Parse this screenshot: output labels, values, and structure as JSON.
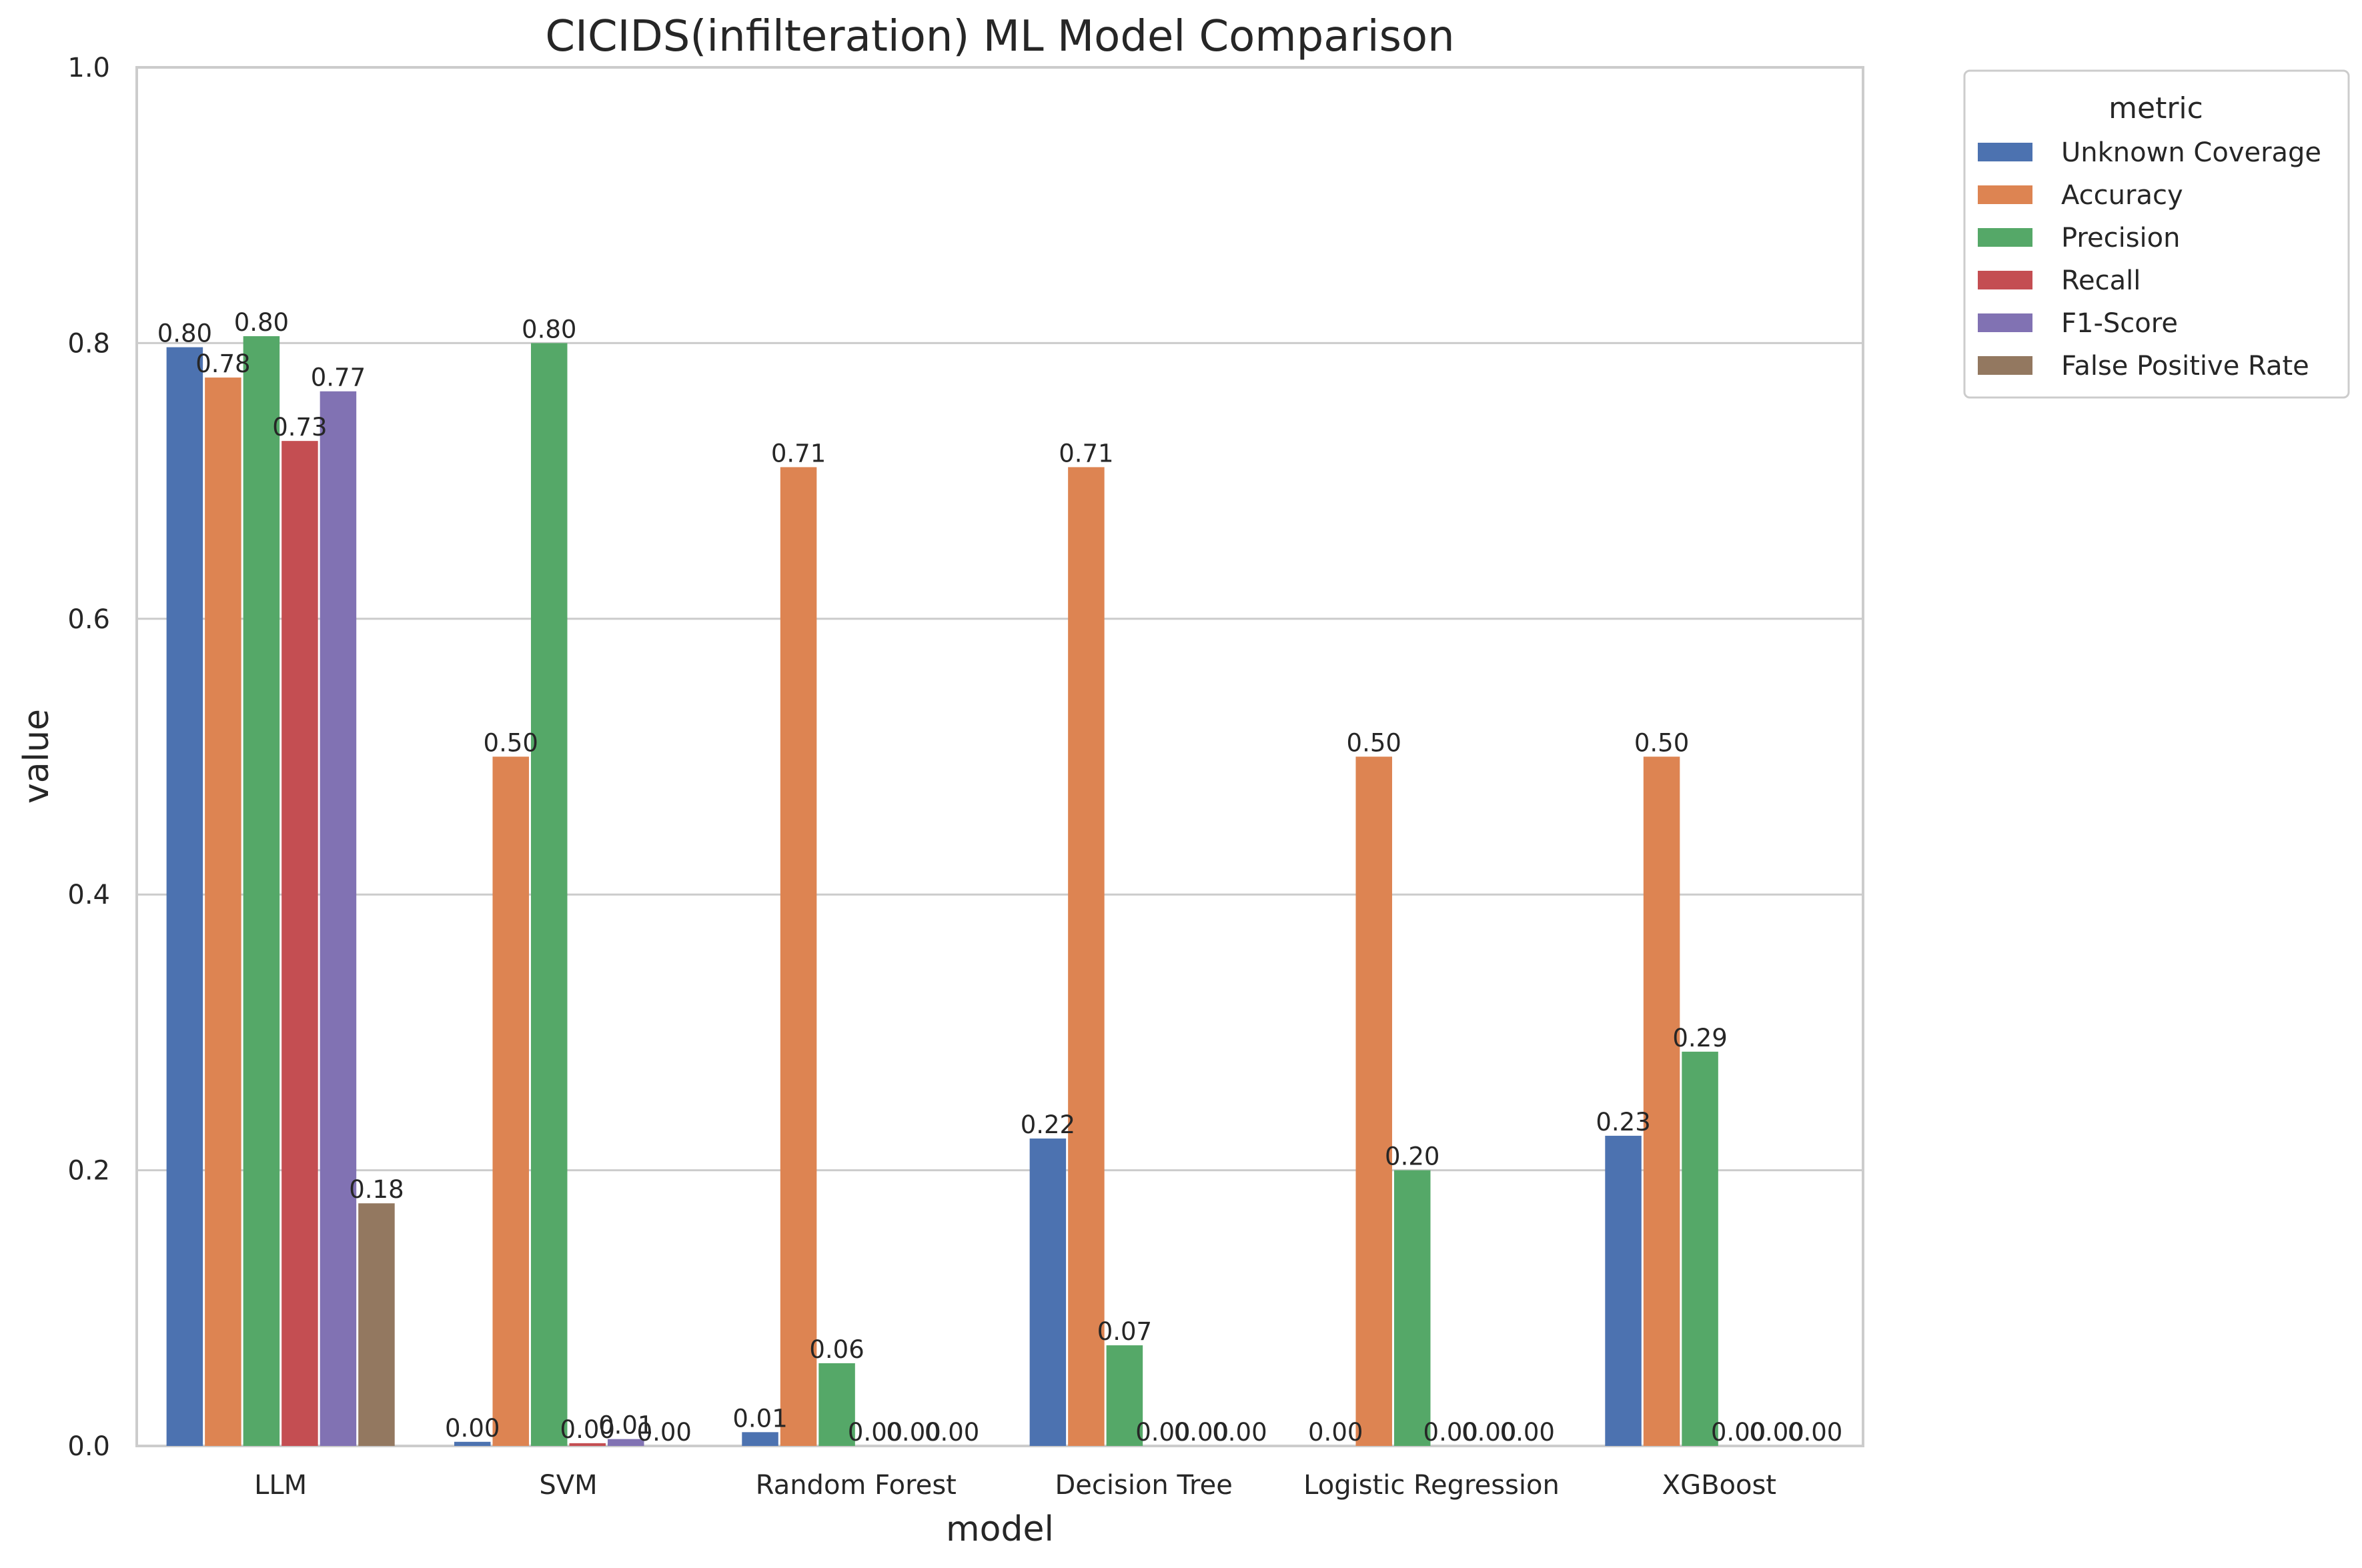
{
  "chart_data": {
    "type": "bar",
    "title": "CICIDS(infilteration) ML Model Comparison",
    "xlabel": "model",
    "ylabel": "value",
    "ylim": [
      0,
      1.0
    ],
    "yticks": [
      "0.0",
      "0.2",
      "0.4",
      "0.6",
      "0.8",
      "1.0"
    ],
    "grid": true,
    "legend_title": "metric",
    "legend_position": "outside-right",
    "categories": [
      "LLM",
      "SVM",
      "Random Forest",
      "Decision Tree",
      "Logistic Regression",
      "XGBoost"
    ],
    "series": [
      {
        "name": "Unknown Coverage",
        "color": "#4c72b0",
        "values": [
          0.797,
          0.003,
          0.01,
          0.223,
          0.0,
          0.225
        ],
        "labels": [
          "0.80",
          "0.00",
          "0.01",
          "0.22",
          "0.00",
          "0.23"
        ]
      },
      {
        "name": "Accuracy",
        "color": "#dd8452",
        "values": [
          0.775,
          0.5,
          0.71,
          0.71,
          0.5,
          0.5
        ],
        "labels": [
          "0.78",
          "0.50",
          "0.71",
          "0.71",
          "0.50",
          "0.50"
        ]
      },
      {
        "name": "Precision",
        "color": "#55a868",
        "values": [
          0.805,
          0.8,
          0.06,
          0.073,
          0.2,
          0.286
        ],
        "labels": [
          "0.80",
          "0.80",
          "0.06",
          "0.07",
          "0.20",
          "0.29"
        ]
      },
      {
        "name": "Recall",
        "color": "#c44e52",
        "values": [
          0.729,
          0.002,
          0.0,
          0.0,
          0.0,
          0.0
        ],
        "labels": [
          "0.73",
          "0.00",
          "0.00",
          "0.00",
          "0.00",
          "0.00"
        ]
      },
      {
        "name": "F1-Score",
        "color": "#8172b3",
        "values": [
          0.765,
          0.005,
          0.0,
          0.0,
          0.0,
          0.0
        ],
        "labels": [
          "0.77",
          "0.01",
          "0.00",
          "0.00",
          "0.00",
          "0.00"
        ]
      },
      {
        "name": "False Positive Rate",
        "color": "#937860",
        "values": [
          0.176,
          0.0,
          0.0,
          0.0,
          0.0,
          0.0
        ],
        "labels": [
          "0.18",
          "0.00",
          "0.00",
          "0.00",
          "0.00",
          "0.00"
        ]
      }
    ]
  }
}
